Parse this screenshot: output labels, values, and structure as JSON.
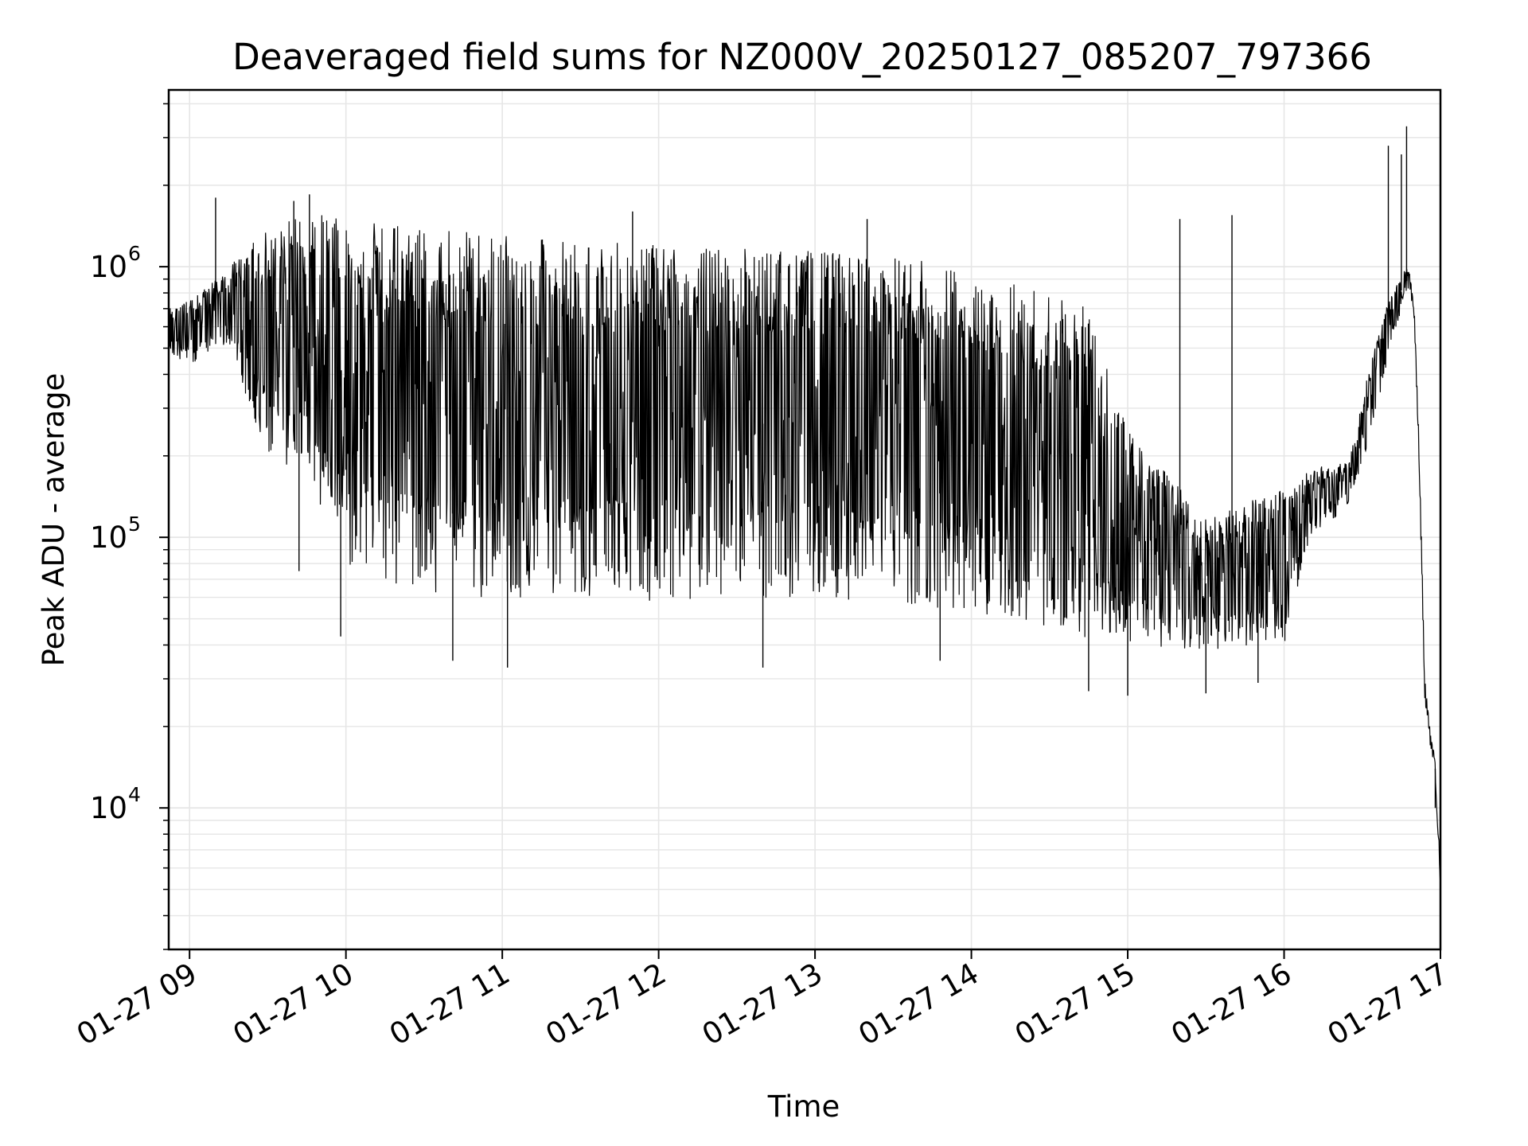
{
  "chart_data": {
    "type": "line",
    "title": "Deaveraged field sums for NZ000V_20250127_085207_797366",
    "xlabel": "Time",
    "ylabel": "Peak ADU - average",
    "x_scale": "time",
    "y_scale": "log",
    "xlim": [
      "2025-01-27T08:52",
      "2025-01-27T17:00"
    ],
    "ylim": [
      3000,
      4500000
    ],
    "x_ticks": [
      {
        "t": "2025-01-27T09:00",
        "label": "01-27 09"
      },
      {
        "t": "2025-01-27T10:00",
        "label": "01-27 10"
      },
      {
        "t": "2025-01-27T11:00",
        "label": "01-27 11"
      },
      {
        "t": "2025-01-27T12:00",
        "label": "01-27 12"
      },
      {
        "t": "2025-01-27T13:00",
        "label": "01-27 13"
      },
      {
        "t": "2025-01-27T14:00",
        "label": "01-27 14"
      },
      {
        "t": "2025-01-27T15:00",
        "label": "01-27 15"
      },
      {
        "t": "2025-01-27T16:00",
        "label": "01-27 16"
      },
      {
        "t": "2025-01-27T17:00",
        "label": "01-27 17"
      }
    ],
    "y_ticks": [
      {
        "value": 10000,
        "base": "10",
        "exp": "4"
      },
      {
        "value": 100000,
        "base": "10",
        "exp": "5"
      },
      {
        "value": 1000000,
        "base": "10",
        "exp": "6"
      }
    ],
    "grid": true,
    "line_color": "#000000",
    "grid_color": "#e6e6e6",
    "series": [
      {
        "envelope": [
          {
            "t": "2025-01-27T08:52",
            "low": 480000,
            "high": 700000
          },
          {
            "t": "2025-01-27T09:00",
            "low": 420000,
            "high": 750000
          },
          {
            "t": "2025-01-27T09:15",
            "low": 500000,
            "high": 1000000
          },
          {
            "t": "2025-01-27T09:30",
            "low": 200000,
            "high": 1400000
          },
          {
            "t": "2025-01-27T09:45",
            "low": 150000,
            "high": 1600000
          },
          {
            "t": "2025-01-27T10:00",
            "low": 80000,
            "high": 1500000
          },
          {
            "t": "2025-01-27T10:30",
            "low": 60000,
            "high": 1400000
          },
          {
            "t": "2025-01-27T11:00",
            "low": 60000,
            "high": 1300000
          },
          {
            "t": "2025-01-27T12:00",
            "low": 58000,
            "high": 1200000
          },
          {
            "t": "2025-01-27T13:00",
            "low": 60000,
            "high": 1150000
          },
          {
            "t": "2025-01-27T13:45",
            "low": 55000,
            "high": 1050000
          },
          {
            "t": "2025-01-27T14:15",
            "low": 50000,
            "high": 900000
          },
          {
            "t": "2025-01-27T14:45",
            "low": 42000,
            "high": 700000
          },
          {
            "t": "2025-01-27T15:00",
            "low": 40000,
            "high": 250000
          },
          {
            "t": "2025-01-27T15:30",
            "low": 38000,
            "high": 120000
          },
          {
            "t": "2025-01-27T16:00",
            "low": 40000,
            "high": 150000
          },
          {
            "t": "2025-01-27T16:10",
            "low": 100000,
            "high": 180000
          },
          {
            "t": "2025-01-27T16:25",
            "low": 130000,
            "high": 190000
          },
          {
            "t": "2025-01-27T16:32",
            "low": 220000,
            "high": 400000
          },
          {
            "t": "2025-01-27T16:40",
            "low": 450000,
            "high": 750000
          },
          {
            "t": "2025-01-27T16:45",
            "low": 700000,
            "high": 950000
          },
          {
            "t": "2025-01-27T16:48",
            "low": 850000,
            "high": 1000000
          },
          {
            "t": "2025-01-27T16:50",
            "low": 600000,
            "high": 700000
          },
          {
            "t": "2025-01-27T16:52",
            "low": 150000,
            "high": 200000
          },
          {
            "t": "2025-01-27T16:54",
            "low": 25000,
            "high": 30000
          },
          {
            "t": "2025-01-27T16:56",
            "low": 17000,
            "high": 20000
          },
          {
            "t": "2025-01-27T16:58",
            "low": 13000,
            "high": 15000
          },
          {
            "t": "2025-01-27T17:00",
            "low": 5000,
            "high": 6000
          }
        ],
        "spikes_up": [
          {
            "t": "2025-01-27T09:10",
            "value": 1800000
          },
          {
            "t": "2025-01-27T09:40",
            "value": 1750000
          },
          {
            "t": "2025-01-27T09:46",
            "value": 1850000
          },
          {
            "t": "2025-01-27T11:50",
            "value": 1600000
          },
          {
            "t": "2025-01-27T13:20",
            "value": 1500000
          },
          {
            "t": "2025-01-27T15:20",
            "value": 1500000
          },
          {
            "t": "2025-01-27T15:40",
            "value": 1550000
          },
          {
            "t": "2025-01-27T16:40",
            "value": 2800000
          },
          {
            "t": "2025-01-27T16:45",
            "value": 2600000
          },
          {
            "t": "2025-01-27T16:47",
            "value": 3300000
          }
        ],
        "spikes_down": [
          {
            "t": "2025-01-27T09:42",
            "value": 75000
          },
          {
            "t": "2025-01-27T09:58",
            "value": 43000
          },
          {
            "t": "2025-01-27T10:41",
            "value": 35000
          },
          {
            "t": "2025-01-27T11:02",
            "value": 33000
          },
          {
            "t": "2025-01-27T12:40",
            "value": 33000
          },
          {
            "t": "2025-01-27T13:48",
            "value": 35000
          },
          {
            "t": "2025-01-27T14:45",
            "value": 27000
          },
          {
            "t": "2025-01-27T15:00",
            "value": 26000
          },
          {
            "t": "2025-01-27T15:30",
            "value": 26500
          },
          {
            "t": "2025-01-27T15:50",
            "value": 29000
          },
          {
            "t": "2025-01-27T16:58",
            "value": 10000
          }
        ]
      }
    ]
  }
}
